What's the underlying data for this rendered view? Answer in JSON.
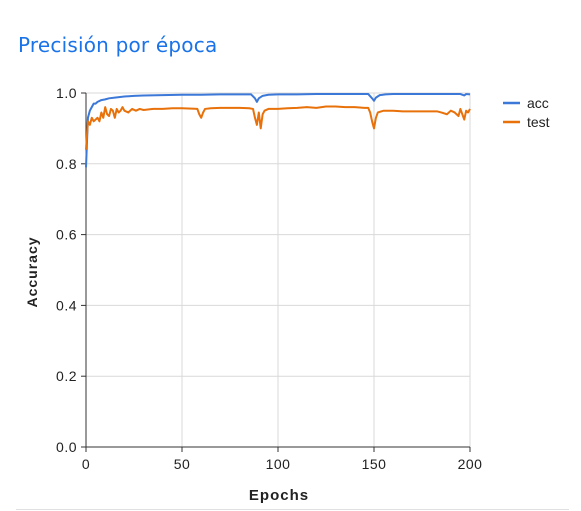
{
  "header": {
    "title": "Precisión por época"
  },
  "chart_data": {
    "type": "line",
    "xlabel": "Epochs",
    "ylabel": "Accuracy",
    "xlim": [
      0,
      200
    ],
    "ylim": [
      0.0,
      1.0
    ],
    "x_ticks": [
      "0",
      "50",
      "100",
      "150",
      "200"
    ],
    "y_ticks": [
      "0.0",
      "0.2",
      "0.4",
      "0.6",
      "0.8",
      "1.0"
    ],
    "grid": true,
    "legend_position": "top-right",
    "series": [
      {
        "name": "acc",
        "color": "#3b78d8",
        "points": [
          [
            0,
            0.79
          ],
          [
            1,
            0.93
          ],
          [
            2,
            0.95
          ],
          [
            3,
            0.96
          ],
          [
            4,
            0.97
          ],
          [
            5,
            0.97
          ],
          [
            6,
            0.975
          ],
          [
            8,
            0.98
          ],
          [
            10,
            0.982
          ],
          [
            12,
            0.985
          ],
          [
            15,
            0.987
          ],
          [
            20,
            0.99
          ],
          [
            25,
            0.992
          ],
          [
            30,
            0.993
          ],
          [
            40,
            0.994
          ],
          [
            50,
            0.995
          ],
          [
            60,
            0.995
          ],
          [
            70,
            0.996
          ],
          [
            80,
            0.996
          ],
          [
            86,
            0.996
          ],
          [
            88,
            0.985
          ],
          [
            89,
            0.975
          ],
          [
            90,
            0.985
          ],
          [
            92,
            0.992
          ],
          [
            95,
            0.995
          ],
          [
            100,
            0.996
          ],
          [
            110,
            0.996
          ],
          [
            120,
            0.997
          ],
          [
            130,
            0.997
          ],
          [
            140,
            0.997
          ],
          [
            147,
            0.997
          ],
          [
            149,
            0.985
          ],
          [
            150,
            0.978
          ],
          [
            151,
            0.987
          ],
          [
            153,
            0.994
          ],
          [
            156,
            0.996
          ],
          [
            160,
            0.997
          ],
          [
            170,
            0.997
          ],
          [
            180,
            0.997
          ],
          [
            190,
            0.997
          ],
          [
            195,
            0.997
          ],
          [
            197,
            0.993
          ],
          [
            198,
            0.997
          ],
          [
            200,
            0.996
          ]
        ]
      },
      {
        "name": "test",
        "color": "#e8710a",
        "points": [
          [
            0,
            0.84
          ],
          [
            1,
            0.92
          ],
          [
            2,
            0.91
          ],
          [
            3,
            0.93
          ],
          [
            4,
            0.92
          ],
          [
            5,
            0.925
          ],
          [
            6,
            0.93
          ],
          [
            7,
            0.92
          ],
          [
            8,
            0.945
          ],
          [
            9,
            0.93
          ],
          [
            10,
            0.96
          ],
          [
            11,
            0.94
          ],
          [
            12,
            0.935
          ],
          [
            13,
            0.955
          ],
          [
            14,
            0.95
          ],
          [
            15,
            0.93
          ],
          [
            16,
            0.955
          ],
          [
            17,
            0.945
          ],
          [
            18,
            0.95
          ],
          [
            19,
            0.96
          ],
          [
            20,
            0.95
          ],
          [
            22,
            0.945
          ],
          [
            24,
            0.955
          ],
          [
            26,
            0.95
          ],
          [
            28,
            0.955
          ],
          [
            30,
            0.952
          ],
          [
            35,
            0.955
          ],
          [
            40,
            0.955
          ],
          [
            45,
            0.957
          ],
          [
            50,
            0.957
          ],
          [
            55,
            0.956
          ],
          [
            58,
            0.955
          ],
          [
            59,
            0.94
          ],
          [
            60,
            0.93
          ],
          [
            61,
            0.945
          ],
          [
            62,
            0.955
          ],
          [
            65,
            0.957
          ],
          [
            70,
            0.958
          ],
          [
            75,
            0.958
          ],
          [
            80,
            0.958
          ],
          [
            85,
            0.957
          ],
          [
            87,
            0.955
          ],
          [
            88,
            0.93
          ],
          [
            89,
            0.91
          ],
          [
            90,
            0.945
          ],
          [
            91,
            0.9
          ],
          [
            92,
            0.94
          ],
          [
            93,
            0.95
          ],
          [
            95,
            0.955
          ],
          [
            100,
            0.955
          ],
          [
            105,
            0.957
          ],
          [
            110,
            0.958
          ],
          [
            115,
            0.96
          ],
          [
            120,
            0.958
          ],
          [
            125,
            0.962
          ],
          [
            130,
            0.962
          ],
          [
            135,
            0.96
          ],
          [
            140,
            0.96
          ],
          [
            145,
            0.958
          ],
          [
            147,
            0.958
          ],
          [
            148,
            0.945
          ],
          [
            149,
            0.92
          ],
          [
            150,
            0.9
          ],
          [
            151,
            0.93
          ],
          [
            152,
            0.945
          ],
          [
            155,
            0.95
          ],
          [
            160,
            0.95
          ],
          [
            165,
            0.948
          ],
          [
            170,
            0.948
          ],
          [
            175,
            0.948
          ],
          [
            180,
            0.948
          ],
          [
            183,
            0.948
          ],
          [
            185,
            0.945
          ],
          [
            188,
            0.94
          ],
          [
            190,
            0.95
          ],
          [
            192,
            0.945
          ],
          [
            194,
            0.935
          ],
          [
            195,
            0.955
          ],
          [
            196,
            0.94
          ],
          [
            197,
            0.925
          ],
          [
            198,
            0.95
          ],
          [
            199,
            0.945
          ],
          [
            200,
            0.955
          ]
        ]
      }
    ]
  }
}
